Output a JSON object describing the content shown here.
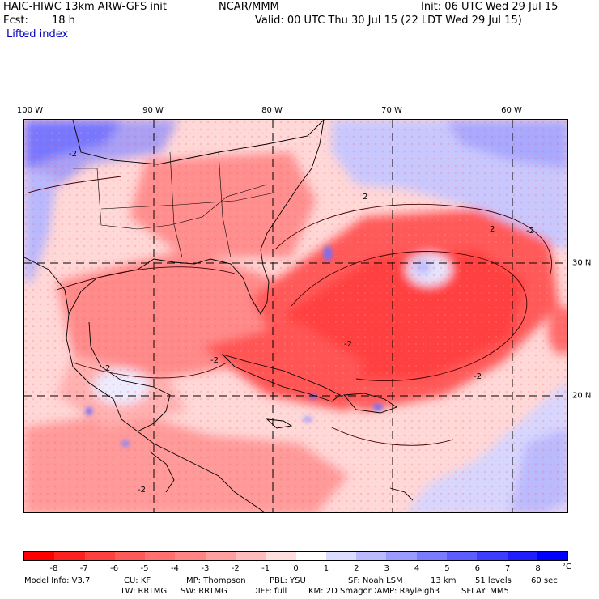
{
  "header": {
    "model_title": "HAIC-HIWC 13km ARW-GFS init",
    "org": "NCAR/MMM",
    "init": "Init: 06 UTC Wed 29 Jul 15",
    "fcst_label": "Fcst:",
    "fcst_value": "18 h",
    "valid": "Valid: 00 UTC Thu 30 Jul 15 (22 LDT Wed 29 Jul 15)",
    "field": "Lifted index"
  },
  "map": {
    "lon_labels": [
      "100 W",
      "90 W",
      "80 W",
      "70 W",
      "60 W"
    ],
    "lat_labels": [
      "30 N",
      "20 N"
    ],
    "contour_labels": [
      "-2",
      "-2",
      "-2",
      "-2",
      "-2",
      "-2",
      "2",
      "2",
      "2"
    ]
  },
  "colorbar": {
    "unit": "°C",
    "ticks": [
      "-8",
      "-7",
      "-6",
      "-5",
      "-4",
      "-3",
      "-2",
      "-1",
      "0",
      "1",
      "2",
      "3",
      "4",
      "5",
      "6",
      "7",
      "8"
    ],
    "colors": [
      "#ff0000",
      "#ff2020",
      "#ff4040",
      "#ff5a5a",
      "#ff7070",
      "#ff8585",
      "#ffa0a0",
      "#ffbcbc",
      "#ffdede",
      "#fefefe",
      "#dcdcff",
      "#babaff",
      "#9a9aff",
      "#7b7bff",
      "#5c5cff",
      "#3d3dff",
      "#1e1eff",
      "#0000ff"
    ]
  },
  "footer": {
    "line1": [
      "Model Info: V3.7",
      "CU: KF",
      "MP: Thompson",
      "PBL: YSU",
      "SF: Noah LSM",
      "13 km",
      "51 levels",
      "60 sec"
    ],
    "line2": [
      "LW: RRTMG",
      "SW: RRTMG",
      "DIFF: full",
      "KM: 2D Smagor",
      "DAMP: Rayleigh3",
      "SFLAY: MM5"
    ]
  }
}
